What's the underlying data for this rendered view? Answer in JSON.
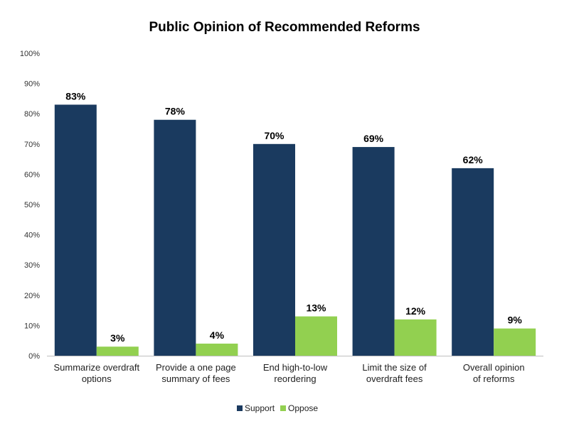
{
  "chart_data": {
    "type": "bar",
    "title": "Public Opinion of Recommended Reforms",
    "categories": [
      [
        "Summarize overdraft",
        "options"
      ],
      [
        "Provide a one page",
        "summary of fees"
      ],
      [
        "End high-to-low",
        "reordering"
      ],
      [
        "Limit the size of",
        "overdraft fees"
      ],
      [
        "Overall opinion",
        "of reforms"
      ]
    ],
    "series": [
      {
        "name": "Support",
        "values": [
          83,
          78,
          70,
          69,
          62
        ],
        "color": "#1a3a5f"
      },
      {
        "name": "Oppose",
        "values": [
          3,
          4,
          13,
          12,
          9
        ],
        "color": "#92d050"
      }
    ],
    "data_label_suffix": "%",
    "ylim": [
      0,
      100
    ],
    "yticks": [
      "0%",
      "10%",
      "20%",
      "30%",
      "40%",
      "50%",
      "60%",
      "70%",
      "80%",
      "90%",
      "100%"
    ],
    "grid": false,
    "legend": "bottom"
  }
}
